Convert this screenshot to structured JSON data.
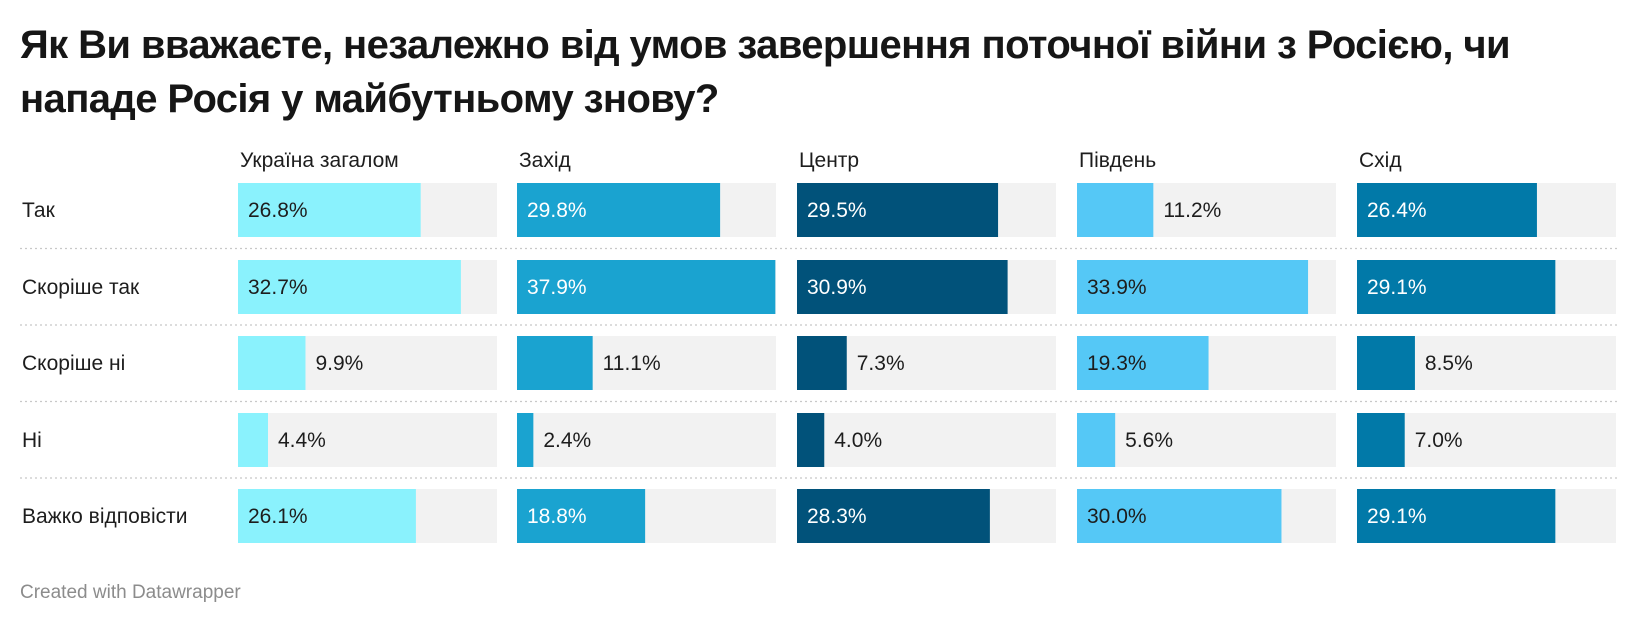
{
  "title": "Як Ви вважаєте, незалежно від умов завершення поточної війни з Росією, чи нападе Росія у майбутньому знову?",
  "footer": "Created with Datawrapper",
  "chart_data": {
    "type": "bar",
    "orientation": "horizontal",
    "layout": "small-multiples",
    "categories": [
      "Так",
      "Скоріше так",
      "Скоріше ні",
      "Ні",
      "Важко відповісти"
    ],
    "xlim": [
      0,
      38
    ],
    "grid": false,
    "value_suffix": "%",
    "background_bar_color": "#f2f2f2",
    "series": [
      {
        "name": "Україна загалом",
        "color": "#8af2fd",
        "values": [
          26.8,
          32.7,
          9.9,
          4.4,
          26.1
        ]
      },
      {
        "name": "Захід",
        "color": "#1aa3d0",
        "values": [
          29.8,
          37.9,
          11.1,
          2.4,
          18.8
        ]
      },
      {
        "name": "Центр",
        "color": "#01527a",
        "values": [
          29.5,
          30.9,
          7.3,
          4.0,
          28.3
        ]
      },
      {
        "name": "Південь",
        "color": "#55c8f6",
        "values": [
          11.2,
          33.9,
          19.3,
          5.6,
          30.0
        ]
      },
      {
        "name": "Схід",
        "color": "#0179a8",
        "values": [
          26.4,
          29.1,
          8.5,
          7.0,
          29.1
        ]
      }
    ]
  }
}
